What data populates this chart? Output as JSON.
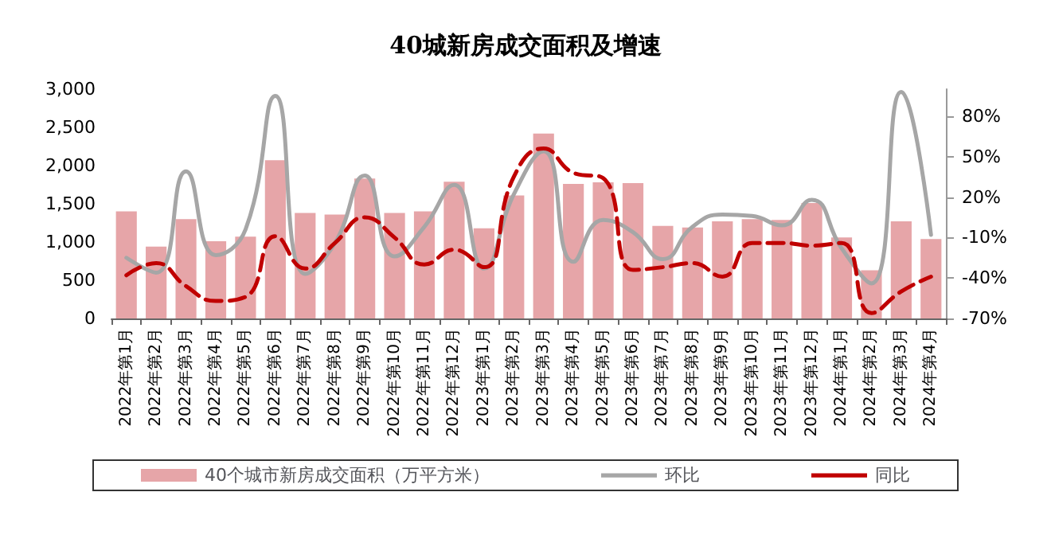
{
  "chart_data": {
    "type": "bar",
    "title": "40城新房成交面积及增速",
    "categories": [
      "2022年第1月",
      "2022年第2月",
      "2022年第3月",
      "2022年第4月",
      "2022年第5月",
      "2022年第6月",
      "2022年第7月",
      "2022年第8月",
      "2022年第9月",
      "2022年第10月",
      "2022年第11月",
      "2022年第12月",
      "2023年第1月",
      "2023年第2月",
      "2023年第3月",
      "2023年第4月",
      "2023年第5月",
      "2023年第6月",
      "2023年第7月",
      "2023年第8月",
      "2023年第9月",
      "2023年第10月",
      "2023年第11月",
      "2023年第12月",
      "2024年第1月",
      "2024年第2月",
      "2024年第3月",
      "2024年第4月"
    ],
    "series": [
      {
        "name": "40个城市新房成交面积（万平方米）",
        "color": "#e6a5a8",
        "values": [
          1400,
          940,
          1300,
          1010,
          1070,
          2070,
          1380,
          1360,
          1830,
          1380,
          1400,
          1790,
          1180,
          1610,
          2420,
          1760,
          1780,
          1770,
          1210,
          1190,
          1270,
          1300,
          1290,
          1510,
          1060,
          630,
          1270,
          1040
        ]
      },
      {
        "name": "环比",
        "type": "line",
        "axis": "y2",
        "color": "#a6a6a6",
        "line_style": "solid",
        "values": [
          -25,
          -36,
          39,
          -23,
          -4,
          95,
          -37,
          -14,
          36,
          -24,
          -2,
          29,
          -33,
          22,
          54,
          -28,
          3,
          -6,
          -26,
          -2,
          7,
          6,
          -1,
          18,
          -18,
          -44,
          98,
          -8
        ]
      },
      {
        "name": "同比",
        "type": "line",
        "axis": "y2",
        "color": "#c00000",
        "line_style": "dashed",
        "values": [
          -38,
          -29,
          -46,
          -57,
          -54,
          -9,
          -33,
          -14,
          5,
          -10,
          -30,
          -19,
          -32,
          35,
          56,
          38,
          34,
          -34,
          -32,
          -29,
          -39,
          -14,
          -14,
          -16,
          -14,
          -66,
          -50,
          -39
        ]
      }
    ],
    "ylim": [
      0,
      3000
    ],
    "yticks": [
      0,
      500,
      {
        "value": 1000,
        "label": "1,000"
      },
      {
        "value": 1500,
        "label": "1,500"
      },
      {
        "value": 2000,
        "label": "2,000"
      },
      {
        "value": 2500,
        "label": "2,500"
      },
      {
        "value": 3000,
        "label": "3,000"
      }
    ],
    "y2lim": [
      -70,
      100
    ],
    "y2ticks": [
      {
        "value": -70,
        "label": "-70%"
      },
      {
        "value": -40,
        "label": "-40%"
      },
      {
        "value": -10,
        "label": "-10%"
      },
      {
        "value": 20,
        "label": "20%"
      },
      {
        "value": 50,
        "label": "50%"
      },
      {
        "value": 80,
        "label": "80%"
      }
    ],
    "grid": false,
    "legend": "bottom",
    "marker": "none"
  }
}
